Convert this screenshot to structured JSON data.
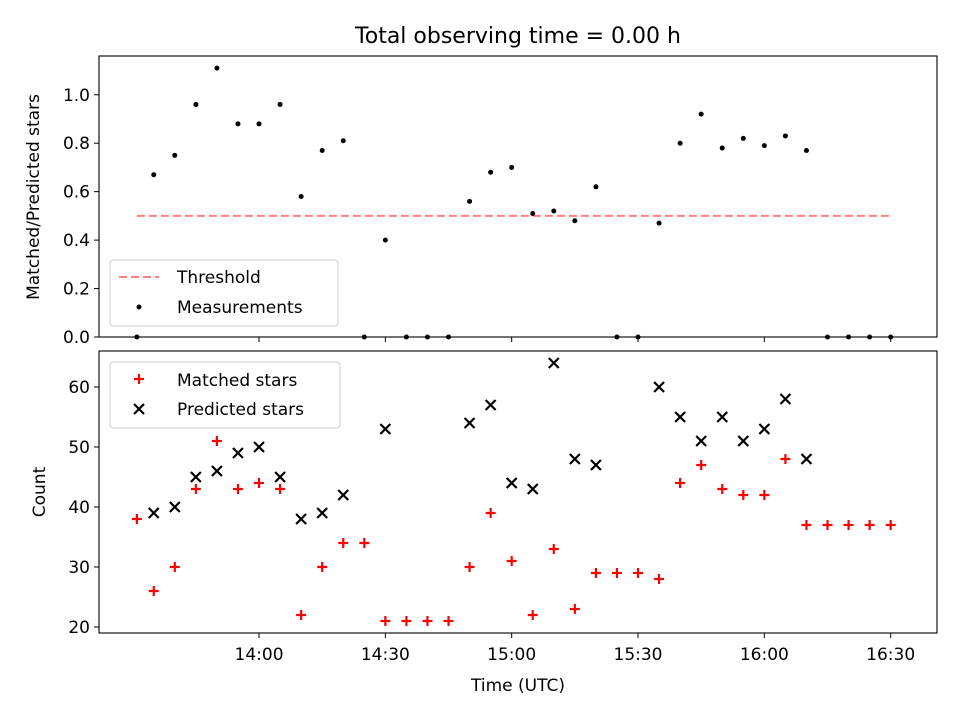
{
  "chart_data": [
    {
      "type": "scatter",
      "title": "Total observing time = 0.00 h",
      "xlabel": "",
      "ylabel": "Matched/Predicted stars",
      "ylim": [
        0,
        1.16
      ],
      "yticks": [
        0.0,
        0.2,
        0.4,
        0.6,
        0.8,
        1.0
      ],
      "ytick_labels": [
        "0.0",
        "0.2",
        "0.4",
        "0.6",
        "0.8",
        "1.0"
      ],
      "x_unit": "minutes of day (UTC)",
      "xlim": [
        802,
        1001
      ],
      "xticks": [
        840,
        870,
        900,
        930,
        960,
        990
      ],
      "threshold": {
        "name": "Threshold",
        "color": "#ff7f7f",
        "value": 0.5,
        "x": [
          811,
          990
        ]
      },
      "series": [
        {
          "name": "Measurements",
          "color": "#000000",
          "marker": "dot",
          "x": [
            811,
            815,
            820,
            825,
            830,
            835,
            840,
            845,
            850,
            855,
            860,
            865,
            870,
            875,
            880,
            885,
            890,
            895,
            900,
            905,
            910,
            915,
            920,
            925,
            930,
            935,
            940,
            945,
            950,
            955,
            960,
            965,
            970,
            975,
            980,
            985,
            990
          ],
          "y": [
            0.0,
            0.67,
            0.75,
            0.96,
            1.11,
            0.88,
            0.88,
            0.96,
            0.58,
            0.77,
            0.81,
            0.0,
            0.4,
            0.0,
            0.0,
            0.0,
            0.56,
            0.68,
            0.7,
            0.51,
            0.52,
            0.48,
            0.62,
            0.0,
            0.0,
            0.47,
            0.8,
            0.92,
            0.78,
            0.82,
            0.79,
            0.83,
            0.77,
            0.0,
            0.0,
            0.0,
            0.0
          ]
        }
      ],
      "legend": {
        "position": "lower-left"
      }
    },
    {
      "type": "scatter",
      "title": "",
      "xlabel": "Time (UTC)",
      "ylabel": "Count",
      "ylim": [
        19,
        66
      ],
      "yticks": [
        20,
        30,
        40,
        50,
        60
      ],
      "ytick_labels": [
        "20",
        "30",
        "40",
        "50",
        "60"
      ],
      "x_unit": "minutes of day (UTC)",
      "xlim": [
        802,
        1001
      ],
      "xticks": [
        840,
        870,
        900,
        930,
        960,
        990
      ],
      "xtick_labels": [
        "14:00",
        "14:30",
        "15:00",
        "15:30",
        "16:00",
        "16:30"
      ],
      "series": [
        {
          "name": "Matched stars",
          "color": "#ff0000",
          "marker": "plus",
          "x": [
            811,
            815,
            820,
            825,
            830,
            835,
            840,
            845,
            850,
            855,
            860,
            865,
            870,
            875,
            880,
            885,
            890,
            895,
            900,
            905,
            910,
            915,
            920,
            925,
            930,
            935,
            940,
            945,
            950,
            955,
            960,
            965,
            970,
            975,
            980,
            985,
            990
          ],
          "y": [
            38,
            26,
            30,
            43,
            51,
            43,
            44,
            43,
            22,
            30,
            34,
            34,
            21,
            21,
            21,
            21,
            30,
            39,
            31,
            22,
            33,
            23,
            29,
            29,
            29,
            28,
            44,
            47,
            43,
            42,
            42,
            48,
            37,
            37,
            37,
            37,
            37
          ]
        },
        {
          "name": "Predicted stars",
          "color": "#000000",
          "marker": "x",
          "x": [
            815,
            820,
            825,
            830,
            835,
            840,
            845,
            850,
            855,
            860,
            870,
            890,
            895,
            900,
            905,
            910,
            915,
            920,
            935,
            940,
            945,
            950,
            955,
            960,
            965,
            970
          ],
          "y": [
            39,
            40,
            45,
            46,
            49,
            50,
            45,
            38,
            39,
            42,
            53,
            54,
            57,
            44,
            43,
            64,
            48,
            47,
            60,
            55,
            51,
            55,
            51,
            53,
            58,
            48
          ]
        }
      ],
      "legend": {
        "position": "upper-left"
      }
    }
  ]
}
